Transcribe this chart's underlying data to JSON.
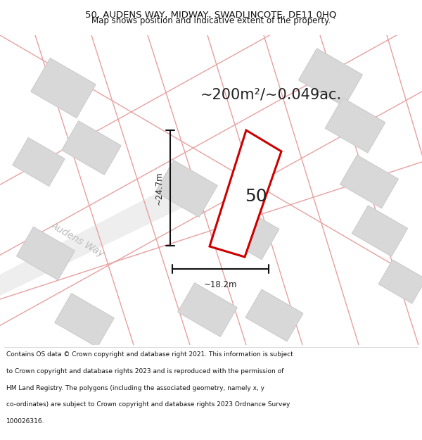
{
  "title_line1": "50, AUDENS WAY, MIDWAY, SWADLINCOTE, DE11 0HQ",
  "title_line2": "Map shows position and indicative extent of the property.",
  "area_label": "~200m²/~0.049ac.",
  "property_number": "50",
  "dim_width": "~18.2m",
  "dim_height": "~24.7m",
  "street_label": "Audens Way",
  "footer_lines": [
    "Contains OS data © Crown copyright and database right 2021. This information is subject",
    "to Crown copyright and database rights 2023 and is reproduced with the permission of",
    "HM Land Registry. The polygons (including the associated geometry, namely x, y",
    "co-ordinates) are subject to Crown copyright and database rights 2023 Ordnance Survey",
    "100026316."
  ],
  "bg_color": "#ffffff",
  "map_bg": "#f5f5f5",
  "road_fill_color": "#eeeeee",
  "road_line_color": "#e8a0a0",
  "building_fill": "#d8d8d8",
  "building_edge": "#cccccc",
  "property_fill": "#ffffff",
  "property_edge": "#cc0000",
  "dim_line_color": "#111111",
  "text_dark": "#222222",
  "street_label_color": "#bbbbbb",
  "title_color": "#111111",
  "footer_color": "#111111",
  "title_fs": 9.5,
  "subtitle_fs": 8.5,
  "area_fs": 15,
  "prop_num_fs": 18,
  "dim_fs": 8.5,
  "street_fs": 10,
  "footer_fs": 6.5
}
